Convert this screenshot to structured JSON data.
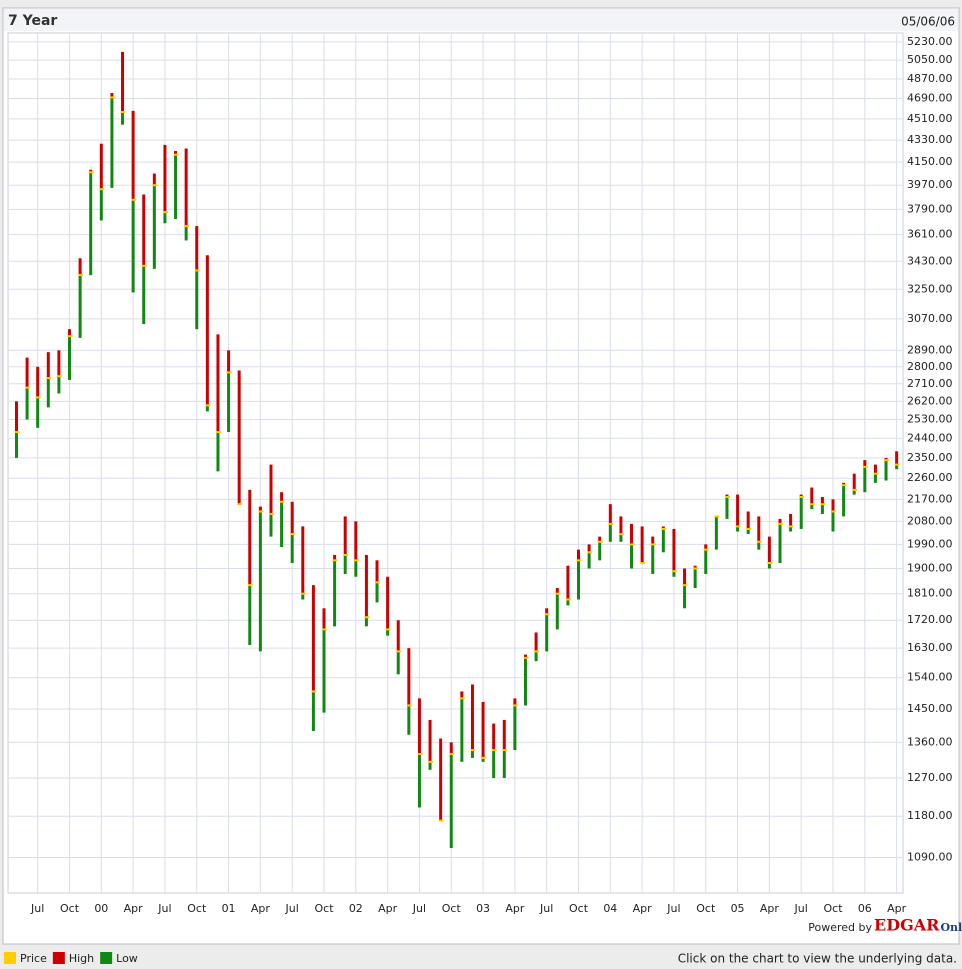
{
  "chart_data": {
    "type": "hlc",
    "title": "7 Year",
    "date": "05/06/06",
    "footer": "Click on the chart to view the underlying data.",
    "credit": {
      "prefix": "Powered by",
      "brand": "EDGAR",
      "suffix": "Online"
    },
    "log_y": true,
    "grid": true,
    "x": [
      -2,
      -1,
      0,
      1,
      2,
      3,
      4,
      5,
      6,
      7,
      8,
      9,
      10,
      11,
      12,
      13,
      14,
      15,
      16,
      17,
      18,
      19,
      20,
      21,
      22,
      23,
      24,
      25,
      26,
      27,
      28,
      29,
      30,
      31,
      32,
      33,
      34,
      35,
      36,
      37,
      38,
      39,
      40,
      41,
      42,
      43,
      44,
      45,
      46,
      47,
      48,
      49,
      50,
      51,
      52,
      53,
      54,
      55,
      56,
      57,
      58,
      59,
      60,
      61,
      62,
      63,
      64,
      65,
      66,
      67,
      68,
      69,
      70,
      71,
      72,
      73,
      74,
      75,
      76,
      77,
      78,
      79,
      80,
      81
    ],
    "series": [
      {
        "name": "Price",
        "color": "#ffcc00",
        "values": [
          2470,
          2690,
          2640,
          2740,
          2750,
          2970,
          3340,
          4070,
          3940,
          4700,
          4570,
          3860,
          3400,
          3970,
          3770,
          4210,
          3670,
          3370,
          2600,
          2470,
          2770,
          2150,
          1840,
          2120,
          2110,
          2160,
          2030,
          1810,
          1500,
          1690,
          1930,
          1950,
          1930,
          1730,
          1850,
          1690,
          1620,
          1460,
          1330,
          1310,
          1170,
          1330,
          1480,
          1340,
          1320,
          1340,
          1340,
          1460,
          1600,
          1620,
          1740,
          1810,
          1790,
          1930,
          1960,
          2000,
          2070,
          2030,
          1990,
          1920,
          1990,
          2050,
          1890,
          1840,
          1900,
          1970,
          2100,
          2180,
          2060,
          2050,
          2000,
          1920,
          2070,
          2060,
          2180,
          2150,
          2150,
          2120,
          2230,
          2210,
          2310,
          2280,
          2340,
          2320
        ]
      },
      {
        "name": "High",
        "color": "#cc0000",
        "values": [
          2620,
          2850,
          2800,
          2880,
          2890,
          3010,
          3450,
          4090,
          4300,
          4740,
          5130,
          4580,
          3900,
          4060,
          4290,
          4240,
          4260,
          3670,
          3470,
          2980,
          2890,
          2780,
          2210,
          2140,
          2320,
          2200,
          2160,
          2060,
          1840,
          1760,
          1950,
          2100,
          2080,
          1950,
          1930,
          1870,
          1720,
          1630,
          1480,
          1420,
          1370,
          1360,
          1500,
          1520,
          1470,
          1410,
          1420,
          1480,
          1610,
          1680,
          1760,
          1830,
          1910,
          1970,
          1990,
          2020,
          2150,
          2100,
          2070,
          2060,
          2020,
          2060,
          2050,
          1900,
          1910,
          1990,
          2100,
          2190,
          2190,
          2120,
          2100,
          2020,
          2090,
          2110,
          2190,
          2220,
          2180,
          2170,
          2240,
          2280,
          2340,
          2320,
          2350,
          2380
        ]
      },
      {
        "name": "Low",
        "color": "#118811",
        "values": [
          2350,
          2530,
          2490,
          2590,
          2660,
          2730,
          2960,
          3340,
          3710,
          3950,
          4460,
          3230,
          3040,
          3380,
          3690,
          3720,
          3570,
          3010,
          2570,
          2290,
          2470,
          2150,
          1640,
          1620,
          2020,
          1980,
          1920,
          1790,
          1390,
          1440,
          1700,
          1880,
          1870,
          1700,
          1780,
          1670,
          1550,
          1380,
          1200,
          1290,
          1170,
          1110,
          1310,
          1320,
          1310,
          1270,
          1270,
          1340,
          1460,
          1590,
          1620,
          1690,
          1770,
          1790,
          1900,
          1930,
          2000,
          2000,
          1900,
          1920,
          1880,
          1960,
          1870,
          1760,
          1830,
          1880,
          1970,
          2090,
          2040,
          2030,
          1970,
          1900,
          1920,
          2040,
          2050,
          2130,
          2110,
          2040,
          2100,
          2190,
          2200,
          2240,
          2250,
          2300
        ]
      }
    ],
    "xlim": [
      -2.8,
      81.6
    ],
    "xticks": [
      {
        "value": 0,
        "label": "Jul"
      },
      {
        "value": 3,
        "label": "Oct"
      },
      {
        "value": 6,
        "label": "00"
      },
      {
        "value": 9,
        "label": "Apr"
      },
      {
        "value": 12,
        "label": "Jul"
      },
      {
        "value": 15,
        "label": "Oct"
      },
      {
        "value": 18,
        "label": "01"
      },
      {
        "value": 21,
        "label": "Apr"
      },
      {
        "value": 24,
        "label": "Jul"
      },
      {
        "value": 27,
        "label": "Oct"
      },
      {
        "value": 30,
        "label": "02"
      },
      {
        "value": 33,
        "label": "Apr"
      },
      {
        "value": 36,
        "label": "Jul"
      },
      {
        "value": 39,
        "label": "Oct"
      },
      {
        "value": 42,
        "label": "03"
      },
      {
        "value": 45,
        "label": "Apr"
      },
      {
        "value": 48,
        "label": "Jul"
      },
      {
        "value": 51,
        "label": "Oct"
      },
      {
        "value": 54,
        "label": "04"
      },
      {
        "value": 57,
        "label": "Apr"
      },
      {
        "value": 60,
        "label": "Jul"
      },
      {
        "value": 63,
        "label": "Oct"
      },
      {
        "value": 66,
        "label": "05"
      },
      {
        "value": 69,
        "label": "Apr"
      },
      {
        "value": 72,
        "label": "Jul"
      },
      {
        "value": 75,
        "label": "Oct"
      },
      {
        "value": 78,
        "label": "06"
      },
      {
        "value": 81,
        "label": "Apr"
      }
    ],
    "ylim": [
      1018,
      5320
    ],
    "yticks": [
      {
        "value": 1090,
        "label": "1090.00"
      },
      {
        "value": 1180,
        "label": "1180.00"
      },
      {
        "value": 1270,
        "label": "1270.00"
      },
      {
        "value": 1360,
        "label": "1360.00"
      },
      {
        "value": 1450,
        "label": "1450.00"
      },
      {
        "value": 1540,
        "label": "1540.00"
      },
      {
        "value": 1630,
        "label": "1630.00"
      },
      {
        "value": 1720,
        "label": "1720.00"
      },
      {
        "value": 1810,
        "label": "1810.00"
      },
      {
        "value": 1900,
        "label": "1900.00"
      },
      {
        "value": 1990,
        "label": "1990.00"
      },
      {
        "value": 2080,
        "label": "2080.00"
      },
      {
        "value": 2170,
        "label": "2170.00"
      },
      {
        "value": 2260,
        "label": "2260.00"
      },
      {
        "value": 2350,
        "label": "2350.00"
      },
      {
        "value": 2440,
        "label": "2440.00"
      },
      {
        "value": 2530,
        "label": "2530.00"
      },
      {
        "value": 2620,
        "label": "2620.00"
      },
      {
        "value": 2710,
        "label": "2710.00"
      },
      {
        "value": 2800,
        "label": "2800.00"
      },
      {
        "value": 2890,
        "label": "2890.00"
      },
      {
        "value": 3070,
        "label": "3070.00"
      },
      {
        "value": 3250,
        "label": "3250.00"
      },
      {
        "value": 3430,
        "label": "3430.00"
      },
      {
        "value": 3610,
        "label": "3610.00"
      },
      {
        "value": 3790,
        "label": "3790.00"
      },
      {
        "value": 3970,
        "label": "3970.00"
      },
      {
        "value": 4150,
        "label": "4150.00"
      },
      {
        "value": 4330,
        "label": "4330.00"
      },
      {
        "value": 4510,
        "label": "4510.00"
      },
      {
        "value": 4690,
        "label": "4690.00"
      },
      {
        "value": 4870,
        "label": "4870.00"
      },
      {
        "value": 5050,
        "label": "5050.00"
      },
      {
        "value": 5230,
        "label": "5230.00"
      }
    ]
  }
}
